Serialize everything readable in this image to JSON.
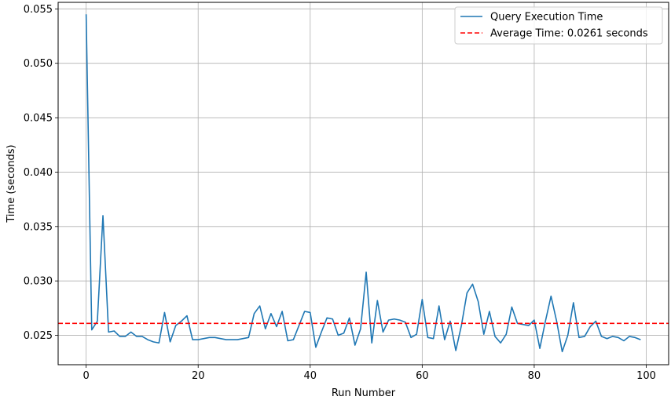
{
  "chart_data": {
    "type": "line",
    "title": "",
    "xlabel": "Run Number",
    "ylabel": "Time (seconds)",
    "xlim": [
      -5,
      104
    ],
    "ylim": [
      0.0223,
      0.0556
    ],
    "x_ticks": [
      0,
      20,
      40,
      60,
      80,
      100
    ],
    "x_tick_labels": [
      "0",
      "20",
      "40",
      "60",
      "80",
      "100"
    ],
    "y_ticks": [
      0.025,
      0.03,
      0.035,
      0.04,
      0.045,
      0.05,
      0.055
    ],
    "y_tick_labels": [
      "0.025",
      "0.030",
      "0.035",
      "0.040",
      "0.045",
      "0.050",
      "0.055"
    ],
    "grid": true,
    "legend_position": "top-right",
    "series": [
      {
        "name": "Query Execution Time",
        "color": "#1f77b4",
        "style": "solid",
        "x_start": 0,
        "values": [
          0.0545,
          0.0255,
          0.0263,
          0.036,
          0.0253,
          0.0254,
          0.0249,
          0.0249,
          0.0253,
          0.0249,
          0.0249,
          0.0246,
          0.0244,
          0.0243,
          0.0271,
          0.0244,
          0.0259,
          0.0263,
          0.0268,
          0.0246,
          0.0246,
          0.0247,
          0.0248,
          0.0248,
          0.0247,
          0.0246,
          0.0246,
          0.0246,
          0.0247,
          0.0248,
          0.027,
          0.0277,
          0.0256,
          0.027,
          0.0258,
          0.0272,
          0.0245,
          0.0246,
          0.0259,
          0.0272,
          0.0271,
          0.0239,
          0.0253,
          0.0266,
          0.0265,
          0.025,
          0.0252,
          0.0266,
          0.0241,
          0.0256,
          0.0308,
          0.0243,
          0.0282,
          0.0253,
          0.0264,
          0.0265,
          0.0264,
          0.0262,
          0.0248,
          0.0251,
          0.0283,
          0.0248,
          0.0247,
          0.0277,
          0.0246,
          0.0263,
          0.0236,
          0.0259,
          0.0289,
          0.0297,
          0.0281,
          0.0251,
          0.0272,
          0.0249,
          0.0243,
          0.0251,
          0.0276,
          0.0261,
          0.026,
          0.0259,
          0.0264,
          0.0238,
          0.0263,
          0.0286,
          0.0263,
          0.0235,
          0.025,
          0.028,
          0.0248,
          0.0249,
          0.0258,
          0.0263,
          0.0249,
          0.0247,
          0.0249,
          0.0248,
          0.0245,
          0.0249,
          0.0248,
          0.0246
        ]
      },
      {
        "name": "Average Time: 0.0261 seconds",
        "color": "#ff0000",
        "style": "dashed",
        "constant": 0.0261
      }
    ]
  }
}
